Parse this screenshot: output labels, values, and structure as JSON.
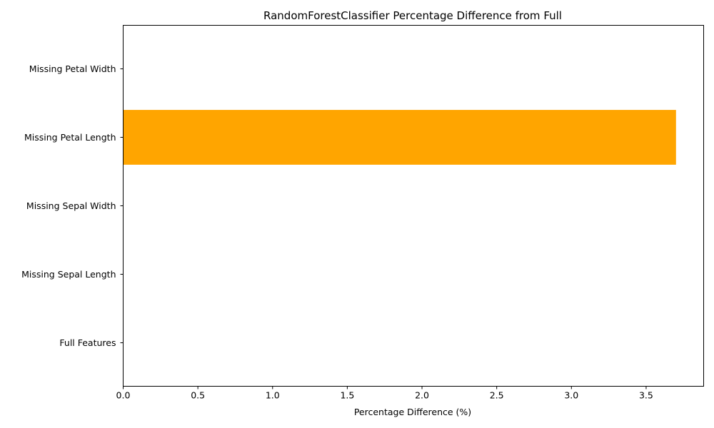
{
  "chart_data": {
    "type": "bar",
    "orientation": "horizontal",
    "title": "RandomForestClassifier Percentage Difference from Full",
    "xlabel": "Percentage Difference (%)",
    "ylabel": "",
    "categories": [
      "Full Features",
      "Missing Sepal Length",
      "Missing Sepal Width",
      "Missing Petal Length",
      "Missing Petal Width"
    ],
    "values": [
      0,
      0,
      0,
      3.7,
      0
    ],
    "xlim": [
      0,
      3.885
    ],
    "xticks": [
      "0.0",
      "0.5",
      "1.0",
      "1.5",
      "2.0",
      "2.5",
      "3.0",
      "3.5"
    ],
    "bar_color": "#ffa500",
    "grid": false,
    "legend": "none"
  }
}
